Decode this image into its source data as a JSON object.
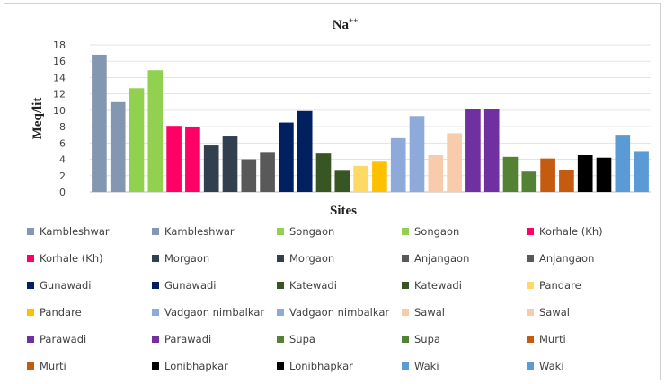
{
  "chart_data": {
    "type": "bar",
    "title": "Na++",
    "title_main": "Na",
    "title_sup": "++",
    "xlabel": "Sites",
    "ylabel": "Meq/lit",
    "ylim": [
      0,
      18
    ],
    "yticks": [
      "0",
      "2",
      "4",
      "6",
      "8",
      "10",
      "12",
      "14",
      "16",
      "18"
    ],
    "grid": true,
    "legend_position": "bottom",
    "series": [
      {
        "name": "Kambleshwar",
        "value": 16.8,
        "color": "#8497b0"
      },
      {
        "name": "Kambleshwar",
        "value": 11.0,
        "color": "#8497b0"
      },
      {
        "name": "Songaon",
        "value": 12.7,
        "color": "#92d050"
      },
      {
        "name": "Songaon",
        "value": 14.9,
        "color": "#92d050"
      },
      {
        "name": "Korhale (Kh)",
        "value": 8.1,
        "color": "#ff0066"
      },
      {
        "name": "Korhale (Kh)",
        "value": 8.0,
        "color": "#ff0066"
      },
      {
        "name": "Morgaon",
        "value": 5.7,
        "color": "#323f4f"
      },
      {
        "name": "Morgaon",
        "value": 6.8,
        "color": "#323f4f"
      },
      {
        "name": "Anjangaon",
        "value": 4.0,
        "color": "#595959"
      },
      {
        "name": "Anjangaon",
        "value": 4.9,
        "color": "#595959"
      },
      {
        "name": "Gunawadi",
        "value": 8.5,
        "color": "#002060"
      },
      {
        "name": "Gunawadi",
        "value": 9.9,
        "color": "#002060"
      },
      {
        "name": "Katewadi",
        "value": 4.7,
        "color": "#375623"
      },
      {
        "name": "Katewadi",
        "value": 2.6,
        "color": "#375623"
      },
      {
        "name": "Pandare",
        "value": 3.2,
        "color": "#ffd966"
      },
      {
        "name": "Pandare",
        "value": 3.7,
        "color": "#ffc000"
      },
      {
        "name": "Vadgaon nimbalkar",
        "value": 6.6,
        "color": "#8eaadb"
      },
      {
        "name": "Vadgaon nimbalkar",
        "value": 9.3,
        "color": "#8eaadb"
      },
      {
        "name": "Sawal",
        "value": 4.5,
        "color": "#f8cbad"
      },
      {
        "name": "Sawal",
        "value": 7.2,
        "color": "#f8cbad"
      },
      {
        "name": "Parawadi",
        "value": 10.1,
        "color": "#7030a0"
      },
      {
        "name": "Parawadi",
        "value": 10.2,
        "color": "#7030a0"
      },
      {
        "name": "Supa",
        "value": 4.3,
        "color": "#548235"
      },
      {
        "name": "Supa",
        "value": 2.5,
        "color": "#548235"
      },
      {
        "name": "Murti",
        "value": 4.1,
        "color": "#c55a11"
      },
      {
        "name": "Murti",
        "value": 2.7,
        "color": "#c55a11"
      },
      {
        "name": "Lonibhapkar",
        "value": 4.5,
        "color": "#000000"
      },
      {
        "name": "Lonibhapkar",
        "value": 4.2,
        "color": "#000000"
      },
      {
        "name": "Waki",
        "value": 6.9,
        "color": "#5b9bd5"
      },
      {
        "name": "Waki",
        "value": 5.0,
        "color": "#5b9bd5"
      }
    ]
  }
}
